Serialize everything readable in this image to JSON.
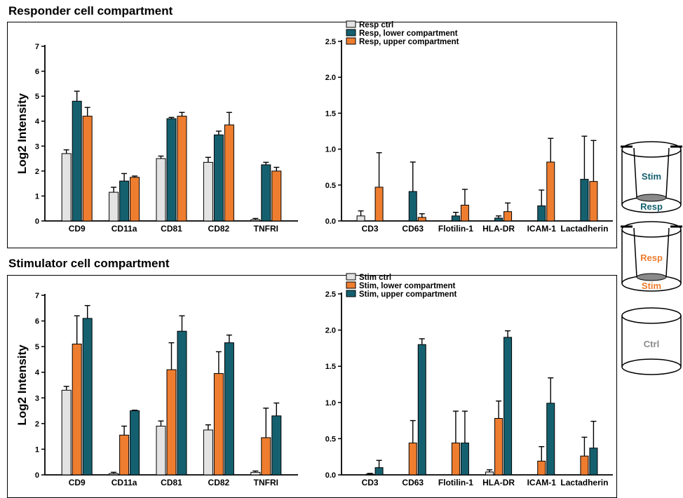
{
  "titles": {
    "responder": "Responder cell compartment",
    "stimulator": "Stimulator cell compartment"
  },
  "colors": {
    "ctrl": "#e3e3e3",
    "teal": "#15606f",
    "orange": "#ee7d2f",
    "ctrl_text": "#8a8a8a"
  },
  "diagram": {
    "cyl1": {
      "top": "Stim",
      "bottom": "Resp"
    },
    "cyl2": {
      "top": "Resp",
      "bottom": "Stim"
    },
    "cyl3": {
      "label": "Ctrl"
    }
  },
  "chart_data": [
    {
      "type": "bar",
      "ylabel": "Log2 Intensity",
      "ylim": [
        0,
        7
      ],
      "yticks": [
        "0",
        "1",
        "2",
        "3",
        "4",
        "5",
        "6",
        "7"
      ],
      "categories": [
        "CD9",
        "CD11a",
        "CD81",
        "CD82",
        "TNFRI"
      ],
      "series": [
        {
          "color_key": "ctrl",
          "values": [
            2.7,
            1.15,
            2.5,
            2.35,
            0.05
          ],
          "errors": [
            0.15,
            0.2,
            0.1,
            0.2,
            0.05
          ]
        },
        {
          "color_key": "teal",
          "values": [
            4.8,
            1.6,
            4.1,
            3.45,
            2.25
          ],
          "errors": [
            0.4,
            0.3,
            0.05,
            0.15,
            0.1
          ]
        },
        {
          "color_key": "orange",
          "values": [
            4.2,
            1.75,
            4.2,
            3.85,
            2.0
          ],
          "errors": [
            0.35,
            0.05,
            0.15,
            0.5,
            0.15
          ]
        }
      ]
    },
    {
      "type": "bar",
      "ylim": [
        0,
        2.5
      ],
      "yticks": [
        "0.0",
        "0.5",
        "1.0",
        "1.5",
        "2.0",
        "2.5"
      ],
      "categories": [
        "CD3",
        "CD63",
        "Flotilin-1",
        "HLA-DR",
        "ICAM-1",
        "Lactadherin"
      ],
      "legend": [
        "Resp ctrl",
        "Resp, lower compartment",
        "Resp, upper compartment"
      ],
      "legend_position": "top-left",
      "series": [
        {
          "name": "Resp ctrl",
          "color_key": "ctrl",
          "values": [
            0.07,
            0,
            0,
            0,
            0,
            0
          ],
          "errors": [
            0.07,
            0,
            0,
            0,
            0,
            0
          ]
        },
        {
          "name": "Resp, lower compartment",
          "color_key": "teal",
          "values": [
            0,
            0.41,
            0.07,
            0.04,
            0.21,
            0.58
          ],
          "errors": [
            0,
            0.41,
            0.05,
            0.03,
            0.22,
            0.6
          ]
        },
        {
          "name": "Resp, upper compartment",
          "color_key": "orange",
          "values": [
            0.47,
            0.05,
            0.22,
            0.13,
            0.82,
            0.55
          ],
          "errors": [
            0.48,
            0.05,
            0.22,
            0.12,
            0.33,
            0.57
          ]
        }
      ]
    },
    {
      "type": "bar",
      "ylabel": "Log2 Intensity",
      "ylim": [
        0,
        7
      ],
      "yticks": [
        "0",
        "1",
        "2",
        "3",
        "4",
        "5",
        "6",
        "7"
      ],
      "categories": [
        "CD9",
        "CD11a",
        "CD81",
        "CD82",
        "TNFRI"
      ],
      "series": [
        {
          "color_key": "ctrl",
          "values": [
            3.3,
            0.05,
            1.9,
            1.75,
            0.1
          ],
          "errors": [
            0.15,
            0.05,
            0.2,
            0.2,
            0.05
          ]
        },
        {
          "color_key": "orange",
          "values": [
            5.1,
            1.55,
            4.1,
            3.95,
            1.45
          ],
          "errors": [
            1.1,
            0.35,
            1.05,
            0.85,
            1.15
          ]
        },
        {
          "color_key": "teal",
          "values": [
            6.1,
            2.5,
            5.6,
            5.15,
            2.3
          ],
          "errors": [
            0.5,
            0.02,
            0.6,
            0.3,
            0.5
          ]
        }
      ]
    },
    {
      "type": "bar",
      "ylim": [
        0,
        2.5
      ],
      "yticks": [
        "0.0",
        "0.5",
        "1.0",
        "1.5",
        "2.0",
        "2.5"
      ],
      "categories": [
        "CD3",
        "CD63",
        "Flotilin-1",
        "HLA-DR",
        "ICAM-1",
        "Lactadherin"
      ],
      "legend": [
        "Stim ctrl",
        "Stim, lower compartment",
        "Stim, upper compartment"
      ],
      "legend_position": "top-left",
      "series": [
        {
          "name": "Stim ctrl",
          "color_key": "ctrl",
          "values": [
            0,
            0,
            0,
            0.04,
            0,
            0
          ],
          "errors": [
            0,
            0,
            0,
            0.03,
            0,
            0
          ]
        },
        {
          "name": "Stim, lower compartment",
          "color_key": "orange",
          "values": [
            0.01,
            0.44,
            0.44,
            0.78,
            0.19,
            0.26
          ],
          "errors": [
            0.01,
            0.31,
            0.44,
            0.24,
            0.2,
            0.26
          ]
        },
        {
          "name": "Stim, upper compartment",
          "color_key": "teal",
          "values": [
            0.1,
            1.8,
            0.44,
            1.9,
            0.99,
            0.37
          ],
          "errors": [
            0.1,
            0.08,
            0.44,
            0.09,
            0.35,
            0.37
          ]
        }
      ]
    }
  ]
}
